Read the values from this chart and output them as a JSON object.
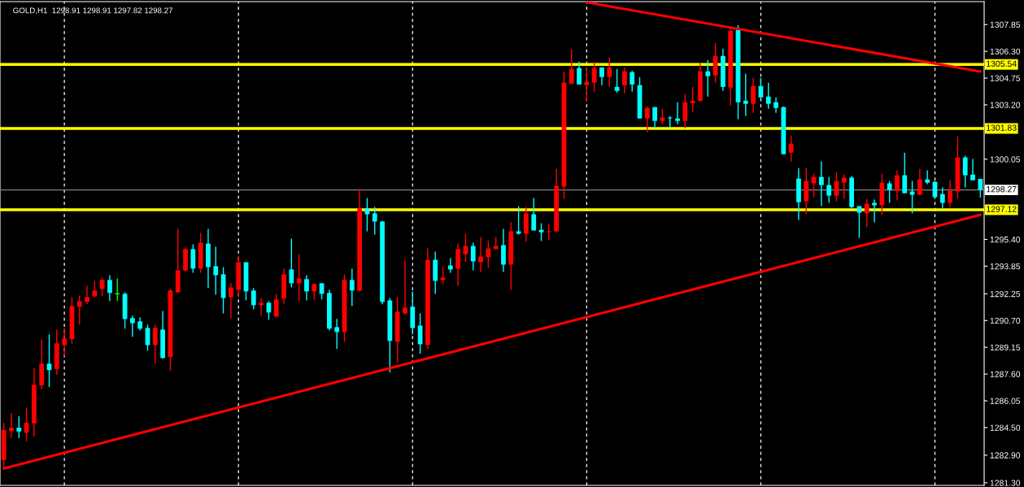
{
  "chart_data": {
    "type": "candlestick",
    "title": "GOLD,H1  1298.91 1298.91 1297.82 1298.27",
    "categories": [
      null,
      null,
      null,
      null,
      null,
      null,
      null,
      null,
      null,
      null,
      null,
      null,
      null,
      null,
      null,
      null,
      null,
      null,
      null,
      null,
      null,
      null,
      null,
      null,
      null,
      null,
      null,
      null,
      null,
      null,
      null,
      null,
      null,
      null,
      null,
      null,
      null,
      null,
      null,
      null,
      null,
      null,
      null,
      null,
      null,
      null,
      null,
      null,
      null,
      null,
      null,
      null,
      null,
      null,
      null,
      null,
      null,
      null,
      null,
      null,
      null,
      null,
      null,
      null,
      null,
      null,
      null,
      null,
      null,
      null,
      null,
      null,
      null,
      null,
      null,
      null,
      null,
      null,
      null,
      null,
      null,
      null,
      null,
      null,
      null,
      null,
      null,
      null,
      null,
      null,
      null,
      null,
      null,
      null,
      null,
      null,
      null,
      null,
      null,
      null,
      null,
      null,
      null,
      null,
      null,
      null,
      null,
      null,
      null,
      null,
      null,
      null,
      null,
      null,
      null,
      null,
      null,
      null,
      null,
      null,
      null,
      null,
      null,
      null,
      null,
      null,
      null,
      null,
      null,
      null
    ],
    "ohlc": [
      [
        1282.62,
        1284.77,
        1282.1,
        1284.35
      ],
      [
        1284.3,
        1285.33,
        1283.89,
        1284.49
      ],
      [
        1284.49,
        1285.15,
        1283.89,
        1284.27
      ],
      [
        1284.2,
        1285.66,
        1283.7,
        1284.77
      ],
      [
        1284.74,
        1287.93,
        1283.98,
        1286.98
      ],
      [
        1286.95,
        1289.61,
        1286.76,
        1288.2
      ],
      [
        1288.2,
        1289.9,
        1286.85,
        1287.83
      ],
      [
        1287.89,
        1290.18,
        1287.56,
        1289.38
      ],
      [
        1289.28,
        1290.27,
        1288.64,
        1289.66
      ],
      [
        1289.63,
        1292.06,
        1289.35,
        1291.54
      ],
      [
        1291.5,
        1292.15,
        1290.47,
        1291.83
      ],
      [
        1291.78,
        1292.72,
        1291.65,
        1292.06
      ],
      [
        1292.11,
        1293.0,
        1292.03,
        1292.44
      ],
      [
        1292.53,
        1293.19,
        1292.11,
        1293.05
      ],
      [
        1293.05,
        1293.33,
        1291.83,
        1292.3
      ],
      [
        1292.25,
        1293.14,
        1291.83,
        1292.25
      ],
      [
        1292.25,
        1292.34,
        1290.23,
        1290.79
      ],
      [
        1290.84,
        1290.98,
        1289.76,
        1290.55
      ],
      [
        1290.65,
        1290.88,
        1290.13,
        1290.23
      ],
      [
        1290.27,
        1290.46,
        1288.96,
        1289.28
      ],
      [
        1289.28,
        1290.46,
        1288.2,
        1290.27
      ],
      [
        1290.18,
        1291.26,
        1288.49,
        1288.53
      ],
      [
        1288.58,
        1292.53,
        1287.78,
        1292.44
      ],
      [
        1292.34,
        1296.01,
        1292.3,
        1293.61
      ],
      [
        1293.61,
        1294.93,
        1293.52,
        1294.84
      ],
      [
        1294.84,
        1295.12,
        1293.47,
        1293.71
      ],
      [
        1293.71,
        1295.78,
        1293.47,
        1295.21
      ],
      [
        1295.16,
        1296.01,
        1292.58,
        1293.8
      ],
      [
        1293.85,
        1294.98,
        1292.2,
        1293.33
      ],
      [
        1293.38,
        1293.8,
        1291.12,
        1292.01
      ],
      [
        1292.06,
        1292.86,
        1290.84,
        1292.62
      ],
      [
        1292.48,
        1294.41,
        1292.06,
        1294.08
      ],
      [
        1294.08,
        1294.08,
        1291.87,
        1292.39
      ],
      [
        1292.44,
        1292.58,
        1291.35,
        1291.59
      ],
      [
        1291.59,
        1292.01,
        1290.98,
        1291.73
      ],
      [
        1291.73,
        1291.83,
        1290.74,
        1291.17
      ],
      [
        1290.93,
        1292.25,
        1290.88,
        1291.92
      ],
      [
        1291.97,
        1293.71,
        1291.68,
        1293.38
      ],
      [
        1293.66,
        1295.45,
        1292.62,
        1292.86
      ],
      [
        1292.86,
        1294.55,
        1291.83,
        1293.14
      ],
      [
        1293.1,
        1293.33,
        1291.87,
        1292.39
      ],
      [
        1292.39,
        1292.86,
        1291.92,
        1292.81
      ],
      [
        1292.86,
        1292.86,
        1291.92,
        1292.25
      ],
      [
        1292.3,
        1292.48,
        1290.13,
        1290.23
      ],
      [
        1290.32,
        1290.79,
        1289.05,
        1290.04
      ],
      [
        1290.04,
        1293.38,
        1289.47,
        1293.05
      ],
      [
        1293.05,
        1293.71,
        1291.54,
        1292.44
      ],
      [
        1292.44,
        1298.32,
        1292.39,
        1297.2
      ],
      [
        1297.2,
        1297.8,
        1295.87,
        1296.86
      ],
      [
        1296.91,
        1297.28,
        1295.68,
        1296.44
      ],
      [
        1296.44,
        1296.48,
        1291.64,
        1291.78
      ],
      [
        1291.87,
        1292.01,
        1287.69,
        1289.52
      ],
      [
        1289.47,
        1292.06,
        1288.25,
        1291.21
      ],
      [
        1291.12,
        1294.22,
        1291.03,
        1291.45
      ],
      [
        1291.5,
        1292.39,
        1289.9,
        1290.27
      ],
      [
        1290.41,
        1291.12,
        1288.77,
        1289.33
      ],
      [
        1289.28,
        1294.88,
        1289.05,
        1294.22
      ],
      [
        1294.22,
        1294.69,
        1292.25,
        1293.0
      ],
      [
        1293.05,
        1293.8,
        1292.81,
        1293.19
      ],
      [
        1293.89,
        1294.32,
        1293.47,
        1293.66
      ],
      [
        1293.71,
        1295.16,
        1292.72,
        1294.84
      ],
      [
        1294.55,
        1295.73,
        1294.08,
        1295.02
      ],
      [
        1295.02,
        1295.21,
        1293.61,
        1294.13
      ],
      [
        1294.08,
        1295.54,
        1293.52,
        1294.41
      ],
      [
        1294.37,
        1295.35,
        1293.75,
        1294.88
      ],
      [
        1294.84,
        1295.54,
        1294.84,
        1295.02
      ],
      [
        1295.07,
        1296.01,
        1293.52,
        1293.94
      ],
      [
        1293.94,
        1296.39,
        1292.48,
        1295.87
      ],
      [
        1295.87,
        1297.33,
        1295.68,
        1295.73
      ],
      [
        1295.73,
        1297.28,
        1295.26,
        1296.91
      ],
      [
        1296.86,
        1297.8,
        1295.92,
        1295.92
      ],
      [
        1295.96,
        1296.34,
        1295.31,
        1295.82
      ],
      [
        1295.82,
        1296.29,
        1295.35,
        1295.87
      ],
      [
        1295.87,
        1299.49,
        1295.82,
        1298.5
      ],
      [
        1298.46,
        1305.14,
        1297.75,
        1304.48
      ],
      [
        1304.43,
        1306.41,
        1304.38,
        1305.28
      ],
      [
        1305.33,
        1305.7,
        1304.38,
        1304.38
      ],
      [
        1304.34,
        1305.37,
        1303.4,
        1304.53
      ],
      [
        1304.48,
        1305.7,
        1303.96,
        1305.33
      ],
      [
        1305.37,
        1305.37,
        1304.34,
        1304.81
      ],
      [
        1304.81,
        1305.94,
        1304.24,
        1305.37
      ],
      [
        1304.24,
        1305.28,
        1303.91,
        1304.01
      ],
      [
        1304.34,
        1305.37,
        1303.87,
        1305.14
      ],
      [
        1305.09,
        1305.18,
        1303.96,
        1304.38
      ],
      [
        1304.34,
        1304.81,
        1302.41,
        1302.41
      ],
      [
        1302.41,
        1303.11,
        1301.61,
        1303.02
      ],
      [
        1303.07,
        1303.07,
        1301.84,
        1302.27
      ],
      [
        1302.27,
        1302.97,
        1302.08,
        1302.46
      ],
      [
        1302.46,
        1302.55,
        1301.84,
        1302.41
      ],
      [
        1302.41,
        1303.35,
        1302.08,
        1302.27
      ],
      [
        1302.27,
        1303.82,
        1301.84,
        1303.35
      ],
      [
        1303.3,
        1304.24,
        1302.79,
        1303.44
      ],
      [
        1303.44,
        1305.65,
        1303.4,
        1305.14
      ],
      [
        1305.14,
        1305.8,
        1303.68,
        1304.86
      ],
      [
        1304.9,
        1306.78,
        1304.48,
        1306.03
      ],
      [
        1306.03,
        1306.45,
        1304.01,
        1304.24
      ],
      [
        1304.2,
        1307.68,
        1303.16,
        1307.49
      ],
      [
        1307.54,
        1307.82,
        1302.36,
        1303.35
      ],
      [
        1303.44,
        1305.0,
        1302.55,
        1303.26
      ],
      [
        1303.26,
        1304.76,
        1302.74,
        1304.29
      ],
      [
        1304.29,
        1304.76,
        1303.59,
        1303.63
      ],
      [
        1303.68,
        1304.48,
        1302.97,
        1303.26
      ],
      [
        1303.35,
        1303.63,
        1302.74,
        1303.02
      ],
      [
        1303.07,
        1303.11,
        1300.34,
        1300.34
      ],
      [
        1300.43,
        1301.42,
        1299.92,
        1300.95
      ],
      [
        1298.93,
        1299.54,
        1296.53,
        1297.56
      ],
      [
        1297.61,
        1299.54,
        1296.86,
        1298.79
      ],
      [
        1298.65,
        1299.21,
        1297.85,
        1299.02
      ],
      [
        1299.02,
        1299.92,
        1297.33,
        1298.55
      ],
      [
        1298.55,
        1299.02,
        1297.52,
        1297.94
      ],
      [
        1297.94,
        1299.3,
        1297.61,
        1298.79
      ],
      [
        1298.69,
        1299.16,
        1297.75,
        1298.98
      ],
      [
        1298.98,
        1299.07,
        1297.19,
        1297.28
      ],
      [
        1297.33,
        1297.33,
        1295.49,
        1296.95
      ],
      [
        1296.91,
        1297.75,
        1296.11,
        1297.47
      ],
      [
        1297.52,
        1297.71,
        1296.39,
        1297.38
      ],
      [
        1297.38,
        1299.21,
        1296.81,
        1298.69
      ],
      [
        1298.65,
        1298.79,
        1297.52,
        1298.27
      ],
      [
        1298.22,
        1299.4,
        1297.66,
        1299.12
      ],
      [
        1299.12,
        1300.43,
        1298.08,
        1298.08
      ],
      [
        1298.18,
        1298.79,
        1296.91,
        1297.99
      ],
      [
        1297.99,
        1299.49,
        1297.99,
        1298.88
      ],
      [
        1298.88,
        1299.4,
        1298.6,
        1298.69
      ],
      [
        1298.74,
        1298.79,
        1297.75,
        1297.85
      ],
      [
        1298.03,
        1298.41,
        1297.19,
        1297.52
      ],
      [
        1297.52,
        1298.83,
        1297.28,
        1298.22
      ],
      [
        1298.18,
        1301.37,
        1297.75,
        1300.15
      ],
      [
        1300.15,
        1300.25,
        1298.41,
        1299.12
      ],
      [
        1299.16,
        1300.06,
        1298.83,
        1298.83
      ],
      [
        1298.91,
        1298.91,
        1297.82,
        1298.27
      ]
    ],
    "colors": [
      "#ff0000",
      "#ff0000",
      "#00ffff",
      "#ff0000",
      "#ff0000",
      "#ff0000",
      "#00ffff",
      "#ff0000",
      "#ff0000",
      "#ff0000",
      "#ff0000",
      "#ff0000",
      "#ff0000",
      "#ff0000",
      "#00ffff",
      "#00ff00",
      "#00ffff",
      "#00ffff",
      "#00ffff",
      "#00ffff",
      "#ff0000",
      "#00ffff",
      "#ff0000",
      "#ff0000",
      "#ff0000",
      "#00ffff",
      "#ff0000",
      "#00ffff",
      "#00ffff",
      "#00ffff",
      "#ff0000",
      "#ff0000",
      "#00ffff",
      "#00ffff",
      "#ff0000",
      "#00ffff",
      "#ff0000",
      "#ff0000",
      "#00ffff",
      "#ff0000",
      "#00ffff",
      "#ff0000",
      "#00ffff",
      "#00ffff",
      "#00ffff",
      "#ff0000",
      "#00ffff",
      "#ff0000",
      "#00ffff",
      "#00ffff",
      "#00ffff",
      "#00ffff",
      "#ff0000",
      "#ff0000",
      "#00ffff",
      "#00ffff",
      "#ff0000",
      "#00ffff",
      "#ff0000",
      "#00ffff",
      "#ff0000",
      "#ff0000",
      "#00ffff",
      "#ff0000",
      "#ff0000",
      "#ff0000",
      "#00ffff",
      "#ff0000",
      "#00ffff",
      "#ff0000",
      "#00ffff",
      "#00ffff",
      "#ff0000",
      "#ff0000",
      "#ff0000",
      "#ff0000",
      "#00ffff",
      "#ff0000",
      "#ff0000",
      "#00ffff",
      "#ff0000",
      "#00ffff",
      "#ff0000",
      "#00ffff",
      "#00ffff",
      "#ff0000",
      "#00ffff",
      "#ff0000",
      "#00ffff",
      "#00ffff",
      "#ff0000",
      "#ff0000",
      "#ff0000",
      "#00ffff",
      "#ff0000",
      "#00ffff",
      "#ff0000",
      "#00ffff",
      "#00ffff",
      "#ff0000",
      "#00ffff",
      "#00ffff",
      "#00ffff",
      "#00ffff",
      "#ff0000",
      "#00ffff",
      "#ff0000",
      "#ff0000",
      "#00ffff",
      "#00ffff",
      "#ff0000",
      "#ff0000",
      "#00ffff",
      "#00ffff",
      "#ff0000",
      "#00ffff",
      "#ff0000",
      "#00ffff",
      "#ff0000",
      "#00ffff",
      "#00ffff",
      "#ff0000",
      "#00ffff",
      "#00ffff",
      "#00ffff",
      "#ff0000",
      "#ff0000",
      "#00ffff",
      "#00ffff",
      "#00ffff"
    ],
    "series": [
      {
        "type": "line",
        "color": "#ff0000",
        "values": [
          1282.13,
          null,
          null,
          null,
          null,
          null,
          null,
          null,
          null,
          null,
          null,
          null,
          null,
          null,
          null,
          null,
          null,
          null,
          null,
          null,
          null,
          null,
          null,
          null,
          null,
          null,
          null,
          null,
          null,
          null,
          null,
          null,
          null,
          null,
          null,
          null,
          null,
          null,
          null,
          null,
          null,
          null,
          null,
          null,
          null,
          null,
          null,
          null,
          null,
          null,
          null,
          null,
          null,
          null,
          null,
          null,
          null,
          null,
          null,
          null,
          null,
          null,
          null,
          null,
          null,
          null,
          null,
          null,
          null,
          null,
          null,
          null,
          null,
          null,
          null,
          null,
          null,
          null,
          null,
          null,
          null,
          null,
          null,
          null,
          null,
          null,
          null,
          null,
          null,
          null,
          null,
          null,
          null,
          null,
          null,
          null,
          null,
          null,
          null,
          null,
          null,
          null,
          null,
          null,
          null,
          null,
          null,
          null,
          null,
          null,
          null,
          null,
          null,
          null,
          null,
          null,
          null,
          null,
          null,
          null,
          null,
          null,
          null,
          null,
          null,
          null,
          null,
          null,
          null,
          1296.83
        ]
      },
      {
        "type": "line",
        "color": "#ff0000",
        "values": [
          null,
          null,
          null,
          null,
          null,
          null,
          null,
          null,
          null,
          null,
          null,
          null,
          null,
          null,
          null,
          null,
          null,
          null,
          null,
          null,
          null,
          null,
          null,
          null,
          null,
          null,
          null,
          null,
          null,
          null,
          null,
          null,
          null,
          null,
          null,
          null,
          null,
          null,
          null,
          null,
          null,
          null,
          null,
          null,
          null,
          null,
          null,
          null,
          null,
          null,
          null,
          null,
          null,
          null,
          null,
          null,
          null,
          null,
          null,
          null,
          null,
          null,
          null,
          null,
          null,
          null,
          null,
          null,
          null,
          null,
          null,
          null,
          null,
          null,
          null,
          null,
          null,
          1309.14,
          null,
          null,
          null,
          null,
          null,
          null,
          null,
          null,
          null,
          null,
          null,
          null,
          null,
          null,
          null,
          null,
          null,
          null,
          null,
          null,
          null,
          null,
          null,
          null,
          null,
          null,
          null,
          null,
          null,
          null,
          null,
          null,
          null,
          null,
          null,
          null,
          null,
          null,
          null,
          null,
          null,
          null,
          null,
          null,
          null,
          null,
          null,
          null,
          null,
          null,
          null,
          1305.13
        ]
      }
    ],
    "ref_lines": [
      {
        "axis": "y",
        "value": 1305.54,
        "label": "1305.54",
        "color": "#ffff00"
      },
      {
        "axis": "y",
        "value": 1301.83,
        "label": "1301.83",
        "color": "#ffff00"
      },
      {
        "axis": "y",
        "value": 1297.12,
        "label": "1297.12",
        "color": "#ffff00"
      },
      {
        "axis": "y",
        "value": 1298.27,
        "label": "1298.27",
        "color": "#808080"
      }
    ],
    "ylim": [
      1281.15,
      1309.18
    ],
    "yticks": [
      {
        "value": 1281.3,
        "label": "1281.30"
      },
      {
        "value": 1282.9,
        "label": "1282.90"
      },
      {
        "value": 1284.5,
        "label": "1284.50"
      },
      {
        "value": 1286.05,
        "label": "1286.05"
      },
      {
        "value": 1287.6,
        "label": "1287.60"
      },
      {
        "value": 1289.15,
        "label": "1289.15"
      },
      {
        "value": 1290.7,
        "label": "1290.70"
      },
      {
        "value": 1292.25,
        "label": "1292.25"
      },
      {
        "value": 1293.85,
        "label": "1293.85"
      },
      {
        "value": 1295.4,
        "label": "1295.40"
      },
      {
        "value": 1300.05,
        "label": "1300.05"
      },
      {
        "value": 1303.2,
        "label": "1303.20"
      },
      {
        "value": 1304.75,
        "label": "1304.75"
      },
      {
        "value": 1306.3,
        "label": "1306.30"
      },
      {
        "value": 1307.85,
        "label": "1307.85"
      }
    ],
    "tick_labels": "y"
  }
}
